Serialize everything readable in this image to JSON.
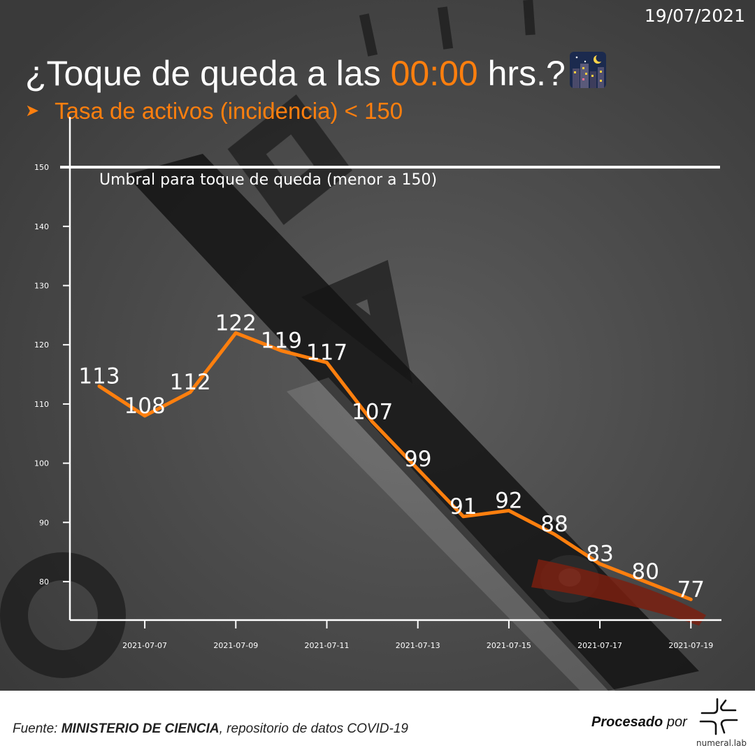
{
  "header": {
    "date": "19/07/2021",
    "title_pre": "¿Toque de queda a las ",
    "title_accent": "00:00",
    "title_post": " hrs.?",
    "subtitle_arrow": "➤",
    "subtitle": "Tasa de activos (incidencia) < 150"
  },
  "chart_data": {
    "type": "line",
    "x": [
      "2021-07-06",
      "2021-07-07",
      "2021-07-08",
      "2021-07-09",
      "2021-07-10",
      "2021-07-11",
      "2021-07-12",
      "2021-07-13",
      "2021-07-14",
      "2021-07-15",
      "2021-07-16",
      "2021-07-17",
      "2021-07-18",
      "2021-07-19"
    ],
    "series": [
      {
        "values": [
          113,
          108,
          112,
          122,
          119,
          117,
          107,
          99,
          91,
          92,
          88,
          83,
          80,
          77
        ],
        "color": "#ff7f0e"
      }
    ],
    "x_ticks": [
      "2021-07-07",
      "2021-07-09",
      "2021-07-11",
      "2021-07-13",
      "2021-07-15",
      "2021-07-17",
      "2021-07-19"
    ],
    "y_ticks": [
      80,
      90,
      100,
      110,
      120,
      130,
      140,
      150
    ],
    "ylim": [
      74,
      154
    ],
    "threshold": {
      "value": 150,
      "label": "Umbral para toque de queda (menor a 150)",
      "color": "#ffffff"
    },
    "data_labels": true,
    "grid": false,
    "xlabel": "",
    "ylabel": ""
  },
  "footer": {
    "source_prefix": "Fuente: ",
    "source_org": "MINISTERIO DE CIENCIA",
    "source_rest": ", repositorio de datos COVID-19",
    "processed_bold": "Procesado",
    "processed_rest": " por",
    "brand": "numeral.lab"
  }
}
